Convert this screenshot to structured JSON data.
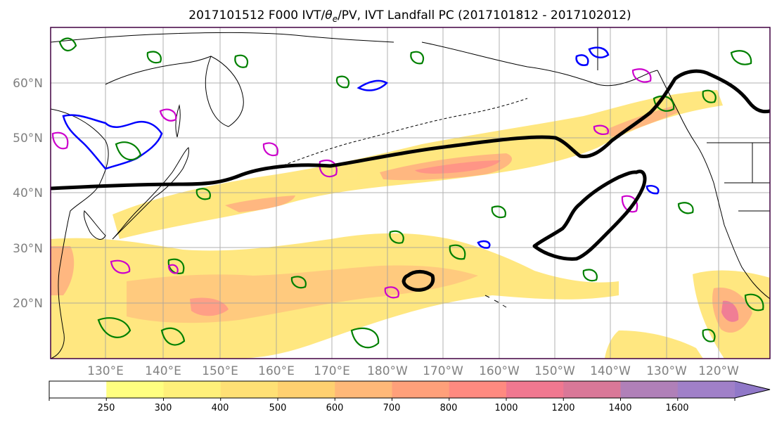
{
  "title": {
    "run": "2017101512",
    "forecast": "F000",
    "fields_prefix": "IVT/",
    "theta_symbol": "θ",
    "theta_subscript": "e",
    "fields_suffix": "/PV, IVT Landfall PC (2017101812 - 2017102012)"
  },
  "map": {
    "lat_labels": [
      "20°N",
      "30°N",
      "40°N",
      "50°N",
      "60°N"
    ],
    "lon_labels": [
      "130°E",
      "140°E",
      "150°E",
      "160°E",
      "170°E",
      "180°W",
      "170°W",
      "160°W",
      "150°W",
      "140°W",
      "130°W",
      "120°W"
    ],
    "gridlines": true
  },
  "colorbar": {
    "tick_labels": [
      "250",
      "300",
      "400",
      "500",
      "600",
      "700",
      "800",
      "1000",
      "1200",
      "1400",
      "1600"
    ],
    "colors": [
      "#ffffff",
      "#ffff80",
      "#fff07a",
      "#ffe075",
      "#ffd070",
      "#ffb878",
      "#ffa07a",
      "#ff8a80",
      "#f07890",
      "#d97898",
      "#b080b8",
      "#a080c8",
      "#9078c8"
    ]
  },
  "contours": {
    "landfall_pc": "#000000",
    "theta_e": "#0000ff",
    "pv": "#008000",
    "pv_alt": "#cc00cc"
  }
}
